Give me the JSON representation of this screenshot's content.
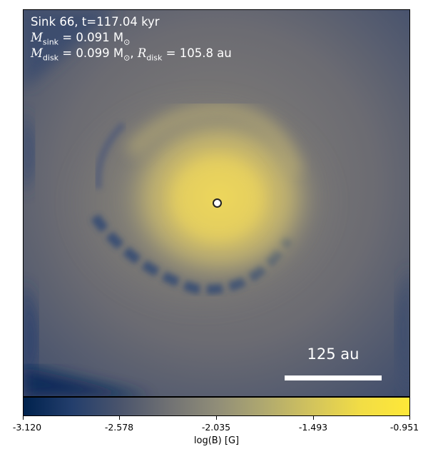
{
  "panel": {
    "title": "Sink 66, t=117.04 kyr",
    "m_sink": {
      "symbol": "M",
      "sub": "sink",
      "text": " = 0.091 M",
      "unit_sub": "⊙"
    },
    "m_disk": {
      "symbol": "M",
      "sub": "disk",
      "text": " = 0.099 M",
      "unit_sub": "⊙",
      "sep": ", ",
      "r_symbol": "R",
      "r_sub": "disk",
      "r_text": " = 105.8 au"
    },
    "scale_bar_label": "125 au"
  },
  "colorbar": {
    "label": "log(B) [G]",
    "ticks": [
      "-3.120",
      "-2.578",
      "-2.035",
      "-1.493",
      "-0.951"
    ],
    "colormap": "cividis",
    "colors": [
      "#00224e",
      "#233e6c",
      "#4a546c",
      "#707173",
      "#908d78",
      "#b0a96f",
      "#d3c45c",
      "#f2dd45",
      "#fee838"
    ]
  }
}
